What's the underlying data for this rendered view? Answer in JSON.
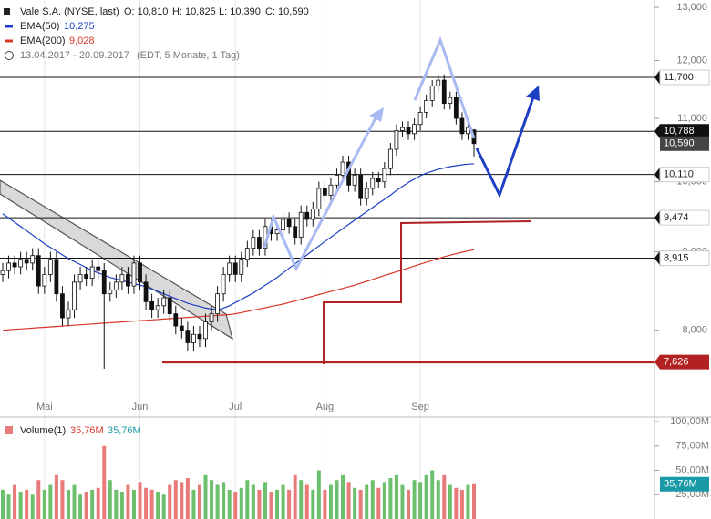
{
  "chart_data": [
    {
      "type": "candlestick",
      "title": "Vale S.A. (NYSE, last)",
      "ohlc_legend": [
        "O: 10,810",
        "H: 10,825",
        "L: 10,390",
        "C: 10,590"
      ],
      "subtitle": "13.04.2017 - 20.09.2017",
      "subtitle_info": "(EDT, 5 Monate, 1 Tag)",
      "log_scale": true,
      "ylim": [
        7050,
        13000
      ],
      "yticks": [
        {
          "value": 8000,
          "label": "8,000"
        },
        {
          "value": 9000,
          "label": "9,000"
        },
        {
          "value": 10000,
          "label": "10,000"
        },
        {
          "value": 11000,
          "label": "11,000"
        },
        {
          "value": 12000,
          "label": "12,000"
        },
        {
          "value": 13000,
          "label": "13,000"
        }
      ],
      "categories": [
        null,
        null,
        null,
        null,
        null,
        null,
        null,
        "Mai",
        null,
        null,
        null,
        null,
        null,
        null,
        null,
        null,
        null,
        null,
        null,
        null,
        null,
        null,
        null,
        "Jun",
        null,
        null,
        null,
        null,
        null,
        null,
        null,
        null,
        null,
        null,
        null,
        null,
        null,
        null,
        null,
        "Jul",
        null,
        null,
        null,
        null,
        null,
        null,
        null,
        null,
        null,
        null,
        null,
        null,
        null,
        null,
        "Aug",
        null,
        null,
        null,
        null,
        null,
        null,
        null,
        null,
        null,
        null,
        null,
        null,
        null,
        null,
        null,
        "Sep",
        null,
        null,
        null,
        null,
        null,
        null,
        null,
        null,
        null
      ],
      "up_color": "#ffffff",
      "down_color": "#111111",
      "open": [
        8700,
        8750,
        8850,
        8800,
        8900,
        8850,
        8950,
        8550,
        8700,
        8900,
        8450,
        8150,
        8250,
        8600,
        8700,
        8650,
        8800,
        8750,
        8450,
        8500,
        8600,
        8700,
        8550,
        8850,
        8600,
        8350,
        8250,
        8300,
        8400,
        8200,
        8050,
        8000,
        7850,
        7950,
        7900,
        8100,
        8200,
        8450,
        8700,
        8850,
        8700,
        8900,
        9050,
        9200,
        9050,
        9350,
        9250,
        9300,
        9450,
        9350,
        9200,
        9550,
        9450,
        9600,
        9900,
        9800,
        9950,
        10100,
        10300,
        9950,
        10100,
        9750,
        9900,
        10050,
        10000,
        10200,
        10500,
        10800,
        10850,
        10750,
        10900,
        11100,
        11300,
        11550,
        11650,
        11250,
        11350,
        11000,
        10750,
        10810
      ],
      "high": [
        8850,
        8950,
        8950,
        9000,
        9000,
        9050,
        9050,
        8800,
        9000,
        9000,
        8550,
        8350,
        8700,
        8800,
        8800,
        8900,
        8900,
        8850,
        8600,
        8700,
        8800,
        8800,
        8950,
        8950,
        8700,
        8450,
        8400,
        8500,
        8500,
        8300,
        8150,
        8100,
        8050,
        8050,
        8200,
        8300,
        8550,
        8800,
        8950,
        8950,
        9000,
        9150,
        9300,
        9300,
        9450,
        9450,
        9400,
        9550,
        9550,
        9450,
        9650,
        9650,
        9700,
        10000,
        10000,
        10050,
        10200,
        10400,
        10400,
        10200,
        10200,
        10000,
        10150,
        10150,
        10300,
        10600,
        10900,
        10950,
        10950,
        11000,
        11200,
        11400,
        11650,
        11750,
        11750,
        11450,
        11450,
        11100,
        10950,
        10825
      ],
      "low": [
        8600,
        8650,
        8700,
        8700,
        8750,
        8750,
        8450,
        8450,
        8600,
        8350,
        8050,
        8050,
        8150,
        8500,
        8550,
        8550,
        8650,
        7550,
        8350,
        8400,
        8500,
        8450,
        8450,
        8500,
        8250,
        8150,
        8150,
        8200,
        8100,
        7950,
        7900,
        7750,
        7750,
        7800,
        7800,
        8000,
        8100,
        8350,
        8600,
        8600,
        8600,
        8800,
        8950,
        8950,
        8950,
        9150,
        9150,
        9200,
        9250,
        9100,
        9100,
        9350,
        9350,
        9500,
        9700,
        9700,
        9850,
        10000,
        9850,
        9850,
        9650,
        9650,
        9800,
        9900,
        9900,
        10100,
        10400,
        10700,
        10650,
        10650,
        10800,
        11000,
        11200,
        11450,
        11150,
        11150,
        10900,
        10650,
        10650,
        10390
      ],
      "close": [
        8750,
        8850,
        8800,
        8900,
        8850,
        8950,
        8550,
        8700,
        8900,
        8450,
        8150,
        8250,
        8600,
        8700,
        8650,
        8800,
        8750,
        8450,
        8500,
        8600,
        8700,
        8550,
        8850,
        8600,
        8350,
        8250,
        8300,
        8400,
        8200,
        8050,
        8000,
        7850,
        7950,
        7900,
        8100,
        8200,
        8450,
        8700,
        8850,
        8700,
        8900,
        9050,
        9200,
        9050,
        9350,
        9250,
        9300,
        9450,
        9350,
        9200,
        9550,
        9450,
        9600,
        9900,
        9800,
        9950,
        10100,
        10300,
        9950,
        10100,
        9750,
        9900,
        10050,
        10000,
        10200,
        10500,
        10800,
        10850,
        10750,
        10900,
        11100,
        11300,
        11550,
        11650,
        11250,
        11350,
        11000,
        10750,
        10850,
        10590
      ],
      "series": [
        {
          "name": "EMA(50)",
          "color": "#1d3fc4",
          "legend_value": "10,275",
          "values": [
            9530,
            9470,
            9410,
            9350,
            9290,
            9230,
            9170,
            9110,
            9060,
            9010,
            8960,
            8910,
            8870,
            8830,
            8790,
            8750,
            8720,
            8690,
            8660,
            8640,
            8620,
            8600,
            8580,
            8560,
            8540,
            8510,
            8480,
            8450,
            8420,
            8390,
            8360,
            8330,
            8310,
            8290,
            8270,
            8260,
            8250,
            8270,
            8300,
            8340,
            8380,
            8420,
            8460,
            8510,
            8560,
            8610,
            8660,
            8720,
            8780,
            8840,
            8900,
            8960,
            9020,
            9080,
            9140,
            9200,
            9260,
            9320,
            9380,
            9440,
            9500,
            9560,
            9620,
            9680,
            9740,
            9800,
            9870,
            9930,
            9990,
            10040,
            10090,
            10130,
            10160,
            10190,
            10210,
            10230,
            10245,
            10258,
            10268,
            10275
          ]
        },
        {
          "name": "EMA(200)",
          "color": "#d9362b",
          "legend_value": "9,028",
          "values": [
            8000,
            8005,
            8010,
            8015,
            8020,
            8025,
            8030,
            8035,
            8040,
            8045,
            8050,
            8055,
            8060,
            8065,
            8070,
            8075,
            8080,
            8085,
            8090,
            8095,
            8100,
            8105,
            8110,
            8115,
            8120,
            8125,
            8130,
            8135,
            8140,
            8145,
            8150,
            8155,
            8160,
            8165,
            8170,
            8175,
            8180,
            8185,
            8190,
            8200,
            8215,
            8230,
            8245,
            8260,
            8275,
            8290,
            8305,
            8320,
            8340,
            8360,
            8380,
            8400,
            8420,
            8440,
            8460,
            8480,
            8500,
            8520,
            8540,
            8560,
            8585,
            8610,
            8635,
            8660,
            8685,
            8710,
            8735,
            8760,
            8785,
            8810,
            8835,
            8860,
            8885,
            8910,
            8935,
            8955,
            8975,
            8995,
            9012,
            9028
          ]
        }
      ],
      "levels": [
        {
          "value": 11700,
          "label": "11,700",
          "color": "#111111",
          "label_fill": "#ffffff"
        },
        {
          "value": 10788,
          "label": "10,788",
          "color": "#111111",
          "label_fill": "#111111"
        },
        {
          "value": 10110,
          "label": "10,110",
          "color": "#111111",
          "label_fill": "#ffffff"
        },
        {
          "value": 9474,
          "label": "9,474",
          "color": "#111111",
          "label_fill": "#ffffff"
        },
        {
          "value": 8915,
          "label": "8,915",
          "color": "#111111",
          "label_fill": "#ffffff"
        },
        {
          "value": 7626,
          "label": "7,626",
          "color": "#b22222",
          "label_fill": "#b22222"
        }
      ],
      "last_price": {
        "value": 10590,
        "label": "10,590"
      }
    },
    {
      "type": "bar",
      "title": "Volume(1)",
      "legend_values": [
        "35,76M",
        "35,76M"
      ],
      "last_label": "35,76M",
      "up_color": "#6cbf6c",
      "down_color": "#e87a7a",
      "ylim": [
        0,
        100
      ],
      "yticks": [
        {
          "value": 25,
          "label": "25,00M"
        },
        {
          "value": 50,
          "label": "50,00M"
        },
        {
          "value": 75,
          "label": "75,00M"
        },
        {
          "value": 100,
          "label": "100,00M"
        }
      ],
      "values": [
        30,
        25,
        35,
        28,
        30,
        25,
        40,
        30,
        35,
        45,
        40,
        30,
        35,
        25,
        28,
        30,
        32,
        75,
        40,
        30,
        28,
        35,
        30,
        38,
        32,
        30,
        28,
        25,
        35,
        40,
        38,
        42,
        30,
        35,
        45,
        40,
        35,
        38,
        30,
        28,
        32,
        40,
        35,
        30,
        38,
        28,
        30,
        35,
        30,
        45,
        40,
        35,
        30,
        50,
        30,
        35,
        40,
        45,
        38,
        32,
        30,
        35,
        40,
        32,
        38,
        42,
        45,
        35,
        30,
        40,
        38,
        45,
        50,
        40,
        45,
        35,
        32,
        30,
        35,
        35.76
      ]
    }
  ]
}
